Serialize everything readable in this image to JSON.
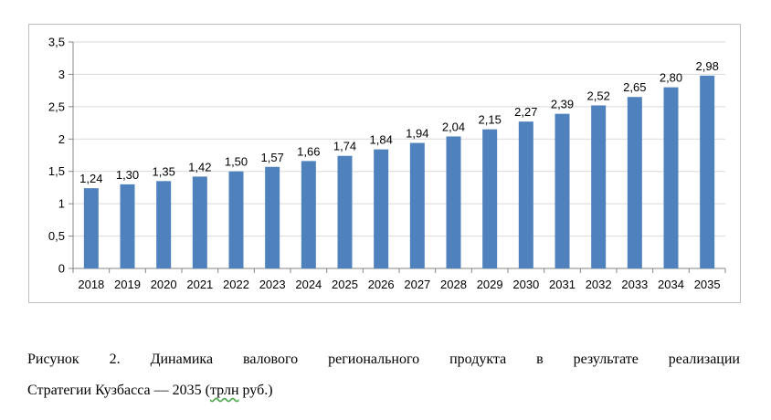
{
  "chart_data": {
    "type": "bar",
    "categories": [
      "2018",
      "2019",
      "2020",
      "2021",
      "2022",
      "2023",
      "2024",
      "2025",
      "2026",
      "2027",
      "2028",
      "2029",
      "2030",
      "2031",
      "2032",
      "2033",
      "2034",
      "2035"
    ],
    "values": [
      1.24,
      1.3,
      1.35,
      1.42,
      1.5,
      1.57,
      1.66,
      1.74,
      1.84,
      1.94,
      2.04,
      2.15,
      2.27,
      2.39,
      2.52,
      2.65,
      2.8,
      2.98
    ],
    "value_labels": [
      "1,24",
      "1,30",
      "1,35",
      "1,42",
      "1,50",
      "1,57",
      "1,66",
      "1,74",
      "1,84",
      "1,94",
      "2,04",
      "2,15",
      "2,27",
      "2,39",
      "2,52",
      "2,65",
      "2,80",
      "2,98"
    ],
    "yticks": [
      0,
      0.5,
      1,
      1.5,
      2,
      2.5,
      3,
      3.5
    ],
    "ytick_labels": [
      "0",
      "0,5",
      "1",
      "1,5",
      "2",
      "2,5",
      "3",
      "3,5"
    ],
    "ylim": [
      0,
      3.5
    ],
    "grid": true,
    "legend": "none",
    "title": "",
    "xlabel": "",
    "ylabel": "",
    "colors": {
      "bar": "#4f81bd",
      "grid": "#d9d9d9",
      "axis": "#868686",
      "frame": "#bfbfbf"
    }
  },
  "caption": {
    "line1": "Рисунок 2. Динамика валового регионального продукта в результате реализации",
    "line2_before": "Стратегии Кузбасса — 2035 (",
    "line2_word": "трлн",
    "line2_after": " руб.)"
  }
}
